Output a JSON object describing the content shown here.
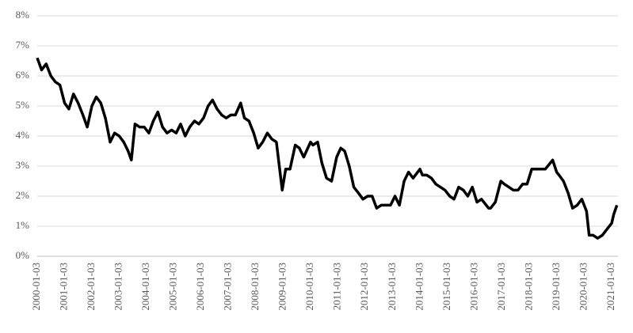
{
  "chart_data": {
    "type": "line",
    "color": "#000000",
    "grid": true,
    "x": [
      "2000-01-03",
      "2000-03-01",
      "2000-05-01",
      "2000-07-03",
      "2000-09-01",
      "2000-11-01",
      "2001-01-02",
      "2001-03-01",
      "2001-05-01",
      "2001-07-02",
      "2001-09-04",
      "2001-11-01",
      "2002-01-02",
      "2002-03-01",
      "2002-05-01",
      "2002-07-01",
      "2002-09-03",
      "2002-11-01",
      "2003-01-02",
      "2003-03-03",
      "2003-05-01",
      "2003-06-13",
      "2003-08-01",
      "2003-10-01",
      "2003-12-01",
      "2004-02-02",
      "2004-04-01",
      "2004-06-01",
      "2004-08-02",
      "2004-10-01",
      "2004-12-01",
      "2005-02-01",
      "2005-04-01",
      "2005-06-01",
      "2005-08-01",
      "2005-10-03",
      "2005-12-01",
      "2006-02-01",
      "2006-04-03",
      "2006-06-01",
      "2006-08-01",
      "2006-10-02",
      "2006-12-01",
      "2007-02-01",
      "2007-04-02",
      "2007-06-12",
      "2007-08-01",
      "2007-10-01",
      "2007-12-03",
      "2008-02-01",
      "2008-04-01",
      "2008-06-02",
      "2008-08-01",
      "2008-10-01",
      "2008-12-18",
      "2009-02-02",
      "2009-04-01",
      "2009-06-10",
      "2009-08-03",
      "2009-10-01",
      "2009-12-31",
      "2010-02-01",
      "2010-04-05",
      "2010-06-01",
      "2010-08-02",
      "2010-10-08",
      "2010-12-15",
      "2011-02-08",
      "2011-04-01",
      "2011-06-01",
      "2011-08-01",
      "2011-10-03",
      "2011-12-01",
      "2012-02-01",
      "2012-04-02",
      "2012-06-01",
      "2012-08-01",
      "2012-10-01",
      "2012-12-03",
      "2013-02-01",
      "2013-04-01",
      "2013-06-03",
      "2013-08-01",
      "2013-10-01",
      "2013-12-31",
      "2014-02-03",
      "2014-04-01",
      "2014-06-02",
      "2014-08-01",
      "2014-10-01",
      "2014-12-01",
      "2015-02-02",
      "2015-04-01",
      "2015-06-01",
      "2015-08-03",
      "2015-10-01",
      "2015-12-01",
      "2016-02-01",
      "2016-04-01",
      "2016-07-05",
      "2016-08-01",
      "2016-10-03",
      "2016-12-15",
      "2017-02-01",
      "2017-04-03",
      "2017-06-01",
      "2017-08-01",
      "2017-10-02",
      "2017-12-01",
      "2018-02-01",
      "2018-04-02",
      "2018-06-01",
      "2018-08-01",
      "2018-11-08",
      "2018-12-31",
      "2019-02-01",
      "2019-04-01",
      "2019-06-03",
      "2019-08-01",
      "2019-10-01",
      "2019-12-02",
      "2020-02-03",
      "2020-03-09",
      "2020-05-01",
      "2020-07-01",
      "2020-09-01",
      "2020-11-02",
      "2021-01-04",
      "2021-02-01",
      "2021-03-15"
    ],
    "values": [
      6.6,
      6.2,
      6.4,
      6.0,
      5.8,
      5.7,
      5.1,
      4.9,
      5.4,
      5.1,
      4.7,
      4.3,
      5.0,
      5.3,
      5.1,
      4.6,
      3.8,
      4.1,
      4.0,
      3.8,
      3.5,
      3.2,
      4.4,
      4.3,
      4.3,
      4.1,
      4.5,
      4.8,
      4.3,
      4.1,
      4.2,
      4.1,
      4.4,
      4.0,
      4.3,
      4.5,
      4.4,
      4.6,
      5.0,
      5.2,
      4.9,
      4.7,
      4.6,
      4.7,
      4.7,
      5.1,
      4.6,
      4.5,
      4.1,
      3.6,
      3.8,
      4.1,
      3.9,
      3.8,
      2.2,
      2.9,
      2.9,
      3.7,
      3.6,
      3.3,
      3.8,
      3.7,
      3.8,
      3.1,
      2.6,
      2.5,
      3.3,
      3.6,
      3.5,
      3.0,
      2.3,
      2.1,
      1.9,
      2.0,
      2.0,
      1.6,
      1.7,
      1.7,
      1.7,
      2.0,
      1.7,
      2.5,
      2.8,
      2.6,
      2.9,
      2.7,
      2.7,
      2.6,
      2.4,
      2.3,
      2.2,
      2.0,
      1.9,
      2.3,
      2.2,
      2.0,
      2.3,
      1.8,
      1.9,
      1.6,
      1.6,
      1.8,
      2.5,
      2.4,
      2.3,
      2.2,
      2.2,
      2.4,
      2.4,
      2.9,
      2.9,
      2.9,
      2.9,
      3.2,
      2.8,
      2.7,
      2.5,
      2.1,
      1.6,
      1.7,
      1.9,
      1.5,
      0.7,
      0.7,
      0.6,
      0.7,
      0.9,
      1.1,
      1.4,
      1.7
    ],
    "xlim": [
      "2000-01-03",
      "2021-03-31"
    ],
    "xticks": [
      "2000-01-03",
      "2001-01-03",
      "2002-01-03",
      "2003-01-03",
      "2004-01-03",
      "2005-01-03",
      "2006-01-03",
      "2007-01-03",
      "2008-01-03",
      "2009-01-03",
      "2010-01-03",
      "2011-01-03",
      "2012-01-03",
      "2013-01-03",
      "2014-01-03",
      "2015-01-03",
      "2016-01-03",
      "2017-01-03",
      "2018-01-03",
      "2019-01-03",
      "2020-01-03",
      "2021-01-03"
    ],
    "ylim": [
      0,
      8
    ],
    "yticks": [
      {
        "value": 0,
        "label": "0%"
      },
      {
        "value": 1,
        "label": "1%"
      },
      {
        "value": 2,
        "label": "2%"
      },
      {
        "value": 3,
        "label": "3%"
      },
      {
        "value": 4,
        "label": "4%"
      },
      {
        "value": 5,
        "label": "5%"
      },
      {
        "value": 6,
        "label": "6%"
      },
      {
        "value": 7,
        "label": "7%"
      },
      {
        "value": 8,
        "label": "8%"
      }
    ]
  }
}
